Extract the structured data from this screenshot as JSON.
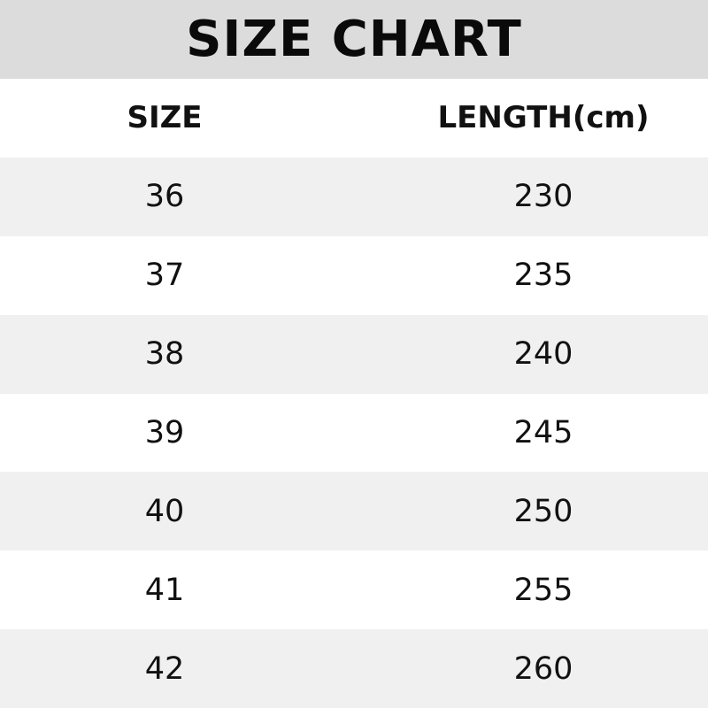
{
  "title": "SIZE CHART",
  "headers": [
    "SIZE",
    "LENGTH(cm)"
  ],
  "rows": [
    [
      "36",
      "230"
    ],
    [
      "37",
      "235"
    ],
    [
      "38",
      "240"
    ],
    [
      "39",
      "245"
    ],
    [
      "40",
      "250"
    ],
    [
      "41",
      "255"
    ],
    [
      "42",
      "260"
    ]
  ],
  "colors": {
    "title_band": "#dcdcdc",
    "shaded_row": "#f0f0f0",
    "plain_row": "#ffffff"
  }
}
